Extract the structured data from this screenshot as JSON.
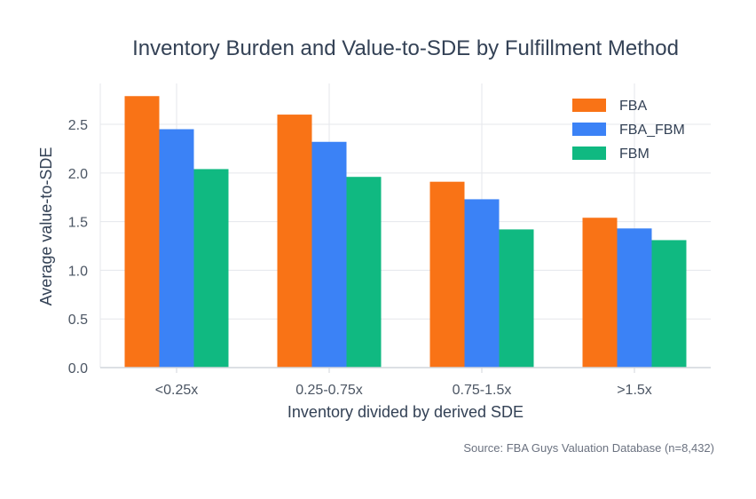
{
  "chart_data": {
    "type": "bar",
    "title": "Inventory Burden and Value-to-SDE by Fulfillment Method",
    "xlabel": "Inventory divided by derived SDE",
    "ylabel": "Average value-to-SDE",
    "categories": [
      "<0.25x",
      "0.25-0.75x",
      "0.75-1.5x",
      ">1.5x"
    ],
    "series": [
      {
        "name": "FBA",
        "color": "#f97316",
        "values": [
          2.79,
          2.6,
          1.91,
          1.54
        ]
      },
      {
        "name": "FBA_FBM",
        "color": "#3b82f6",
        "values": [
          2.45,
          2.32,
          1.73,
          1.43
        ]
      },
      {
        "name": "FBM",
        "color": "#10b981",
        "values": [
          2.04,
          1.96,
          1.42,
          1.31
        ]
      }
    ],
    "ylim": [
      0,
      2.92
    ],
    "yticks": [
      0.0,
      0.5,
      1.0,
      1.5,
      2.0,
      2.5
    ],
    "ytick_labels": [
      "0.0",
      "0.5",
      "1.0",
      "1.5",
      "2.0",
      "2.5"
    ],
    "grid": true,
    "legend_position": "top-right",
    "source_note": "Source: FBA Guys Valuation Database (n=8,432)"
  }
}
